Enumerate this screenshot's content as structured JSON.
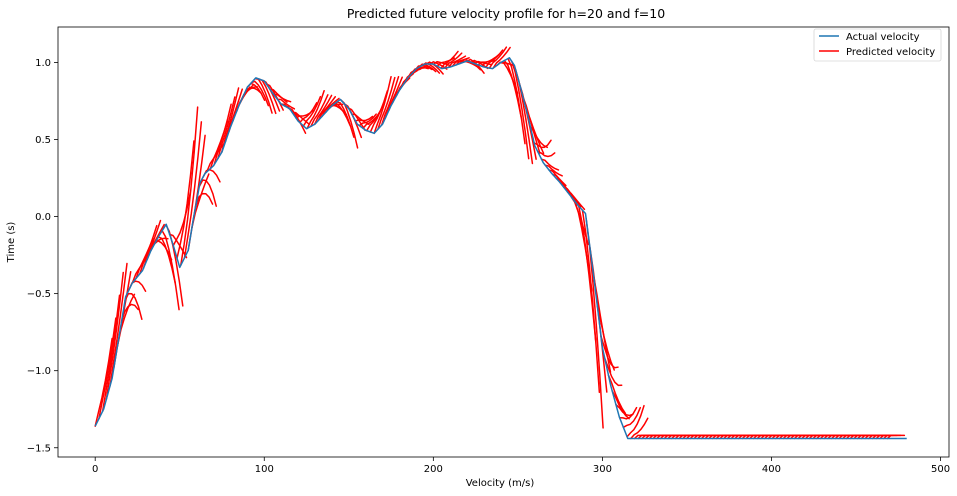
{
  "chart_data": {
    "type": "line",
    "title": "Predicted future velocity profile for h=20 and f=10",
    "xlabel": "Velocity (m/s)",
    "ylabel": "Time (s)",
    "xlim": [
      -22,
      505
    ],
    "ylim": [
      -1.56,
      1.23
    ],
    "xticks": [
      0,
      100,
      200,
      300,
      400,
      500
    ],
    "yticks": [
      -1.5,
      -1.0,
      -0.5,
      0.0,
      0.5,
      1.0
    ],
    "xtick_labels": [
      "0",
      "100",
      "200",
      "300",
      "400",
      "500"
    ],
    "ytick_labels": [
      "−1.5",
      "−1.0",
      "−0.5",
      "0.0",
      "0.5",
      "1.0"
    ],
    "grid": false,
    "legend_position": "top-right",
    "series": [
      {
        "name": "Actual velocity",
        "color": "#1f77b4",
        "x": [
          0,
          5,
          10,
          15,
          18,
          22,
          28,
          33,
          38,
          42,
          46,
          50,
          55,
          58,
          62,
          65,
          70,
          75,
          80,
          85,
          90,
          95,
          100,
          105,
          110,
          115,
          120,
          125,
          130,
          135,
          140,
          145,
          150,
          155,
          160,
          165,
          170,
          175,
          180,
          185,
          190,
          195,
          200,
          205,
          210,
          215,
          220,
          225,
          230,
          235,
          240,
          245,
          248,
          252,
          256,
          260,
          265,
          270,
          275,
          280,
          285,
          290,
          295,
          300,
          305,
          310,
          315,
          320,
          330,
          340,
          350,
          400,
          450,
          480
        ],
        "y": [
          -1.36,
          -1.25,
          -1.05,
          -0.72,
          -0.52,
          -0.43,
          -0.35,
          -0.22,
          -0.12,
          -0.05,
          -0.18,
          -0.33,
          -0.22,
          -0.02,
          0.22,
          0.28,
          0.33,
          0.42,
          0.58,
          0.72,
          0.84,
          0.9,
          0.88,
          0.8,
          0.73,
          0.7,
          0.62,
          0.57,
          0.6,
          0.66,
          0.72,
          0.76,
          0.7,
          0.6,
          0.56,
          0.54,
          0.6,
          0.72,
          0.82,
          0.9,
          0.96,
          0.99,
          0.99,
          0.96,
          0.97,
          0.99,
          1.01,
          0.99,
          0.97,
          0.96,
          1.0,
          1.03,
          0.98,
          0.82,
          0.65,
          0.46,
          0.35,
          0.28,
          0.22,
          0.15,
          0.08,
          0.02,
          -0.4,
          -0.85,
          -1.1,
          -1.3,
          -1.44,
          -1.44,
          -1.44,
          -1.44,
          -1.44,
          -1.44,
          -1.44,
          -1.44
        ]
      },
      {
        "name": "Predicted velocity",
        "color": "#ff0000"
      }
    ]
  }
}
